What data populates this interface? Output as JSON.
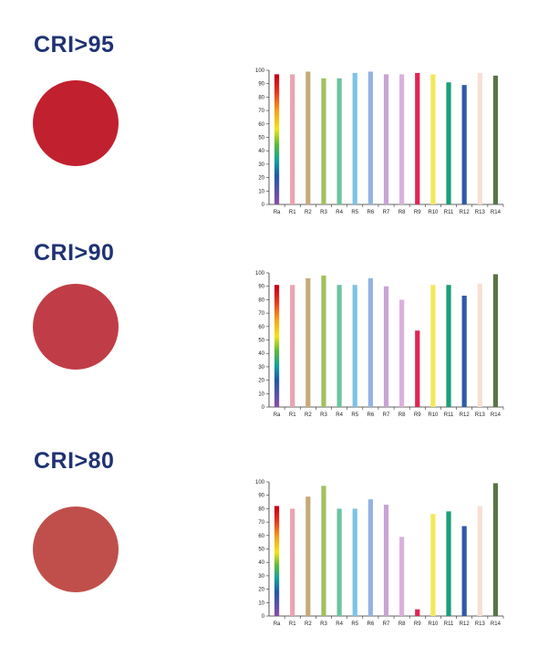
{
  "colors": {
    "title": "#1f3272",
    "Ra": "rainbow",
    "R1": "#eaa3b1",
    "R2": "#c8a97a",
    "R3": "#a2c05e",
    "R4": "#6cc39f",
    "R5": "#7ec3e7",
    "R6": "#93b3e3",
    "R7": "#c9a3d4",
    "R8": "#d8b2dd",
    "R9": "#e02555",
    "R10": "#f1e95b",
    "R11": "#1b9f77",
    "R12": "#2e5aa8",
    "R13": "#f8dfd4",
    "R14": "#5b7447"
  },
  "sections": [
    {
      "title": "CRI>95",
      "swatch_color": "#c1202f",
      "chart_data": {
        "type": "bar",
        "categories": [
          "Ra",
          "R1",
          "R2",
          "R3",
          "R4",
          "R5",
          "R6",
          "R7",
          "R8",
          "R9",
          "R10",
          "R11",
          "R12",
          "R13",
          "R14"
        ],
        "values": [
          97,
          97,
          99,
          94,
          94,
          98,
          99,
          97,
          97,
          98,
          97,
          91,
          89,
          98,
          96
        ],
        "ylim": [
          0,
          100
        ],
        "yticks": [
          "0",
          "10",
          "20",
          "30",
          "40",
          "50",
          "60",
          "70",
          "80",
          "90",
          "100"
        ]
      }
    },
    {
      "title": "CRI>90",
      "swatch_color": "#c03d47",
      "chart_data": {
        "type": "bar",
        "categories": [
          "Ra",
          "R1",
          "R2",
          "R3",
          "R4",
          "R5",
          "R6",
          "R7",
          "R8",
          "R9",
          "R10",
          "R11",
          "R12",
          "R13",
          "R14"
        ],
        "values": [
          91,
          91,
          96,
          98,
          91,
          91,
          96,
          90,
          80,
          57,
          91,
          91,
          83,
          92,
          99
        ],
        "ylim": [
          0,
          100
        ],
        "yticks": [
          "0",
          "10",
          "20",
          "30",
          "40",
          "50",
          "60",
          "70",
          "80",
          "90",
          "100"
        ]
      }
    },
    {
      "title": "CRI>80",
      "swatch_color": "#c04f4b",
      "chart_data": {
        "type": "bar",
        "categories": [
          "Ra",
          "R1",
          "R2",
          "R3",
          "R4",
          "R5",
          "R6",
          "R7",
          "R8",
          "R9",
          "R10",
          "R11",
          "R12",
          "R13",
          "R14"
        ],
        "values": [
          82,
          80,
          89,
          97,
          80,
          80,
          87,
          83,
          59,
          5,
          76,
          78,
          67,
          82,
          99
        ],
        "ylim": [
          0,
          100
        ],
        "yticks": [
          "0",
          "10",
          "20",
          "30",
          "40",
          "50",
          "60",
          "70",
          "80",
          "90",
          "100"
        ]
      }
    }
  ]
}
